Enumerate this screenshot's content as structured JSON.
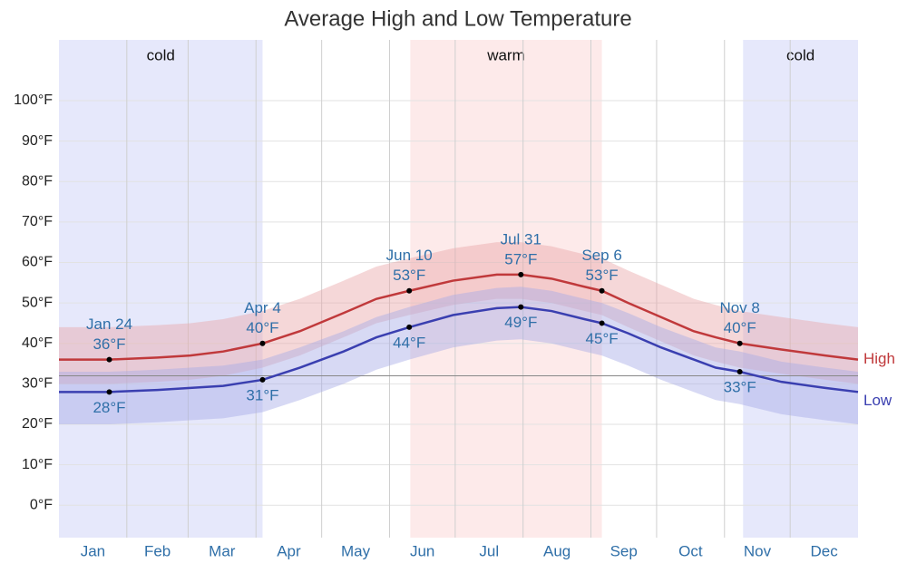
{
  "chart_data": {
    "type": "line",
    "title": "Average High and Low Temperature",
    "xlim": [
      0,
      365
    ],
    "xticks": [
      {
        "value": 0,
        "label": "Jan"
      },
      {
        "value": 31,
        "label": "Feb"
      },
      {
        "value": 59,
        "label": "Mar"
      },
      {
        "value": 90,
        "label": "Apr"
      },
      {
        "value": 120,
        "label": "May"
      },
      {
        "value": 151,
        "label": "Jun"
      },
      {
        "value": 181,
        "label": "Jul"
      },
      {
        "value": 212,
        "label": "Aug"
      },
      {
        "value": 243,
        "label": "Sep"
      },
      {
        "value": 273,
        "label": "Oct"
      },
      {
        "value": 304,
        "label": "Nov"
      },
      {
        "value": 334,
        "label": "Dec"
      }
    ],
    "ylim": [
      -8,
      115
    ],
    "yticks": [
      {
        "value": 0,
        "label": "0°F"
      },
      {
        "value": 10,
        "label": "10°F"
      },
      {
        "value": 20,
        "label": "20°F"
      },
      {
        "value": 30,
        "label": "30°F"
      },
      {
        "value": 40,
        "label": "40°F"
      },
      {
        "value": 50,
        "label": "50°F"
      },
      {
        "value": 60,
        "label": "60°F"
      },
      {
        "value": 70,
        "label": "70°F"
      },
      {
        "value": 80,
        "label": "80°F"
      },
      {
        "value": 90,
        "label": "90°F"
      },
      {
        "value": 100,
        "label": "100°F"
      }
    ],
    "grid": true,
    "reference_line": 32,
    "seasons": [
      {
        "label": "cold",
        "start": 0,
        "end": 93,
        "color": "#e6e8fb"
      },
      {
        "label": "warm",
        "start": 160.5,
        "end": 248,
        "color": "#fdeaea"
      },
      {
        "label": "cold",
        "start": 312.5,
        "end": 365,
        "color": "#e6e8fb"
      }
    ],
    "x": [
      0,
      23,
      45,
      60,
      75,
      93,
      110,
      130,
      145,
      160,
      180,
      200,
      211,
      225,
      240,
      248,
      260,
      275,
      290,
      300,
      311,
      330,
      350,
      365
    ],
    "series": [
      {
        "name": "High",
        "color": "#c0393b",
        "band_color": "#e9a6a8",
        "values": [
          36,
          36,
          36.5,
          37,
          38,
          40,
          43,
          47.5,
          51,
          53,
          55.5,
          57,
          57,
          56,
          54,
          53,
          50,
          46.5,
          43,
          41.5,
          40,
          38.5,
          37,
          36
        ],
        "band_upper": [
          44,
          44,
          44.5,
          45,
          46,
          48,
          51,
          55.5,
          59,
          61,
          63.5,
          65,
          65,
          64,
          62,
          61,
          58,
          54.5,
          51,
          49.5,
          48,
          46.5,
          45,
          44
        ],
        "band_lower": [
          30,
          30,
          30.5,
          31,
          32,
          34,
          37,
          41.5,
          45,
          47,
          49.5,
          51,
          51,
          50,
          48,
          47,
          44,
          40.5,
          37,
          35.5,
          34,
          32.5,
          31,
          30
        ]
      },
      {
        "name": "Low",
        "color": "#3a3fb0",
        "band_color": "#a7abe6",
        "values": [
          28,
          28,
          28.5,
          29,
          29.5,
          31,
          34,
          38,
          41.5,
          44,
          47,
          48.7,
          49,
          48,
          46,
          45,
          42.5,
          39,
          36,
          34,
          33,
          30.5,
          29,
          28
        ],
        "band_upper": [
          33,
          33,
          33.5,
          34,
          34.5,
          36,
          39,
          43,
          46.5,
          49,
          52,
          53.7,
          54,
          53,
          51,
          50,
          47.5,
          44,
          41,
          39,
          38,
          35.5,
          34,
          33
        ],
        "band_lower": [
          20,
          20,
          20.5,
          21,
          21.5,
          23,
          26,
          30,
          33.5,
          36,
          39,
          40.7,
          41,
          40,
          38,
          37,
          34.5,
          31,
          28,
          26,
          25,
          22.5,
          21,
          20
        ]
      }
    ],
    "annotations": [
      {
        "date": "Jan 24",
        "x": 23,
        "high": 36,
        "high_label": "36°F",
        "low": 28,
        "low_label": "28°F"
      },
      {
        "date": "Apr 4",
        "x": 93,
        "high": 40,
        "high_label": "40°F",
        "low": 31,
        "low_label": "31°F"
      },
      {
        "date": "Jun 10",
        "x": 160,
        "high": 53,
        "high_label": "53°F",
        "low": 44,
        "low_label": "44°F"
      },
      {
        "date": "Jul 31",
        "x": 211,
        "high": 57,
        "high_label": "57°F",
        "low": 49,
        "low_label": "49°F"
      },
      {
        "date": "Sep 6",
        "x": 248,
        "high": 53,
        "high_label": "53°F",
        "low": 45,
        "low_label": "45°F"
      },
      {
        "date": "Nov 8",
        "x": 311,
        "high": 40,
        "high_label": "40°F",
        "low": 33,
        "low_label": "33°F"
      }
    ]
  }
}
